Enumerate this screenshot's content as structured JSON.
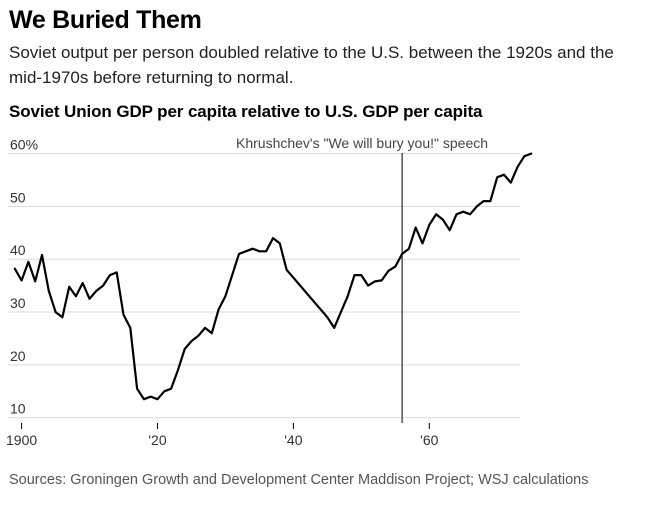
{
  "headline": "We Buried Them",
  "dek": "Soviet output per person doubled relative to the U.S. between the 1920s and the mid-1970s before returning to normal.",
  "source": "Sources: Groningen Growth and Development Center Maddison Project; WSJ calculations",
  "colors": {
    "line": "#000000",
    "grid": "#d9d9d9",
    "annotation": "#000000",
    "tick_text": "#333333"
  },
  "chart_data": {
    "type": "line",
    "title": "Soviet Union GDP per capita relative to U.S. GDP per capita",
    "xlabel": "",
    "ylabel": "",
    "xlim": [
      1898,
      1976
    ],
    "ylim": [
      9,
      62
    ],
    "grid": true,
    "y_ticks": [
      {
        "value": 10,
        "label": "10"
      },
      {
        "value": 20,
        "label": "20"
      },
      {
        "value": 30,
        "label": "30"
      },
      {
        "value": 40,
        "label": "40"
      },
      {
        "value": 50,
        "label": "50"
      },
      {
        "value": 60,
        "label": "60%"
      }
    ],
    "x_ticks": [
      {
        "value": 1900,
        "label": "1900"
      },
      {
        "value": 1920,
        "label": "'20"
      },
      {
        "value": 1940,
        "label": "'40"
      },
      {
        "value": 1960,
        "label": "'60"
      }
    ],
    "annotation": {
      "x": 1956,
      "text": "Khrushchev's \"We will bury you!\" speech"
    },
    "x": [
      1899,
      1900,
      1901,
      1902,
      1903,
      1904,
      1905,
      1906,
      1907,
      1908,
      1909,
      1910,
      1911,
      1912,
      1913,
      1914,
      1915,
      1916,
      1917,
      1918,
      1919,
      1920,
      1921,
      1922,
      1923,
      1924,
      1925,
      1926,
      1927,
      1928,
      1929,
      1930,
      1931,
      1932,
      1933,
      1934,
      1935,
      1936,
      1937,
      1938,
      1939,
      1940,
      1941,
      1942,
      1943,
      1944,
      1945,
      1946,
      1947,
      1948,
      1949,
      1950,
      1951,
      1952,
      1953,
      1954,
      1955,
      1956,
      1957,
      1958,
      1959,
      1960,
      1961,
      1962,
      1963,
      1964,
      1965,
      1966,
      1967,
      1968,
      1969,
      1970,
      1971,
      1972,
      1973,
      1974,
      1975
    ],
    "series": [
      {
        "values": [
          38.2,
          36.0,
          39.5,
          35.8,
          40.8,
          34.0,
          30.0,
          29.0,
          34.8,
          33.0,
          35.5,
          32.5,
          34.0,
          35.0,
          37.0,
          37.5,
          29.5,
          27.0,
          15.5,
          13.5,
          14.0,
          13.5,
          15.0,
          15.5,
          19.0,
          23.0,
          24.5,
          25.5,
          27.0,
          26.0,
          30.5,
          33.0,
          37.0,
          41.0,
          41.5,
          42.0,
          41.5,
          41.5,
          44.0,
          43.0,
          38.0,
          36.5,
          35.0,
          33.5,
          32.0,
          30.5,
          29.0,
          27.0,
          30.0,
          33.0,
          37.0,
          37.0,
          35.0,
          35.8,
          36.0,
          37.8,
          38.6,
          41.0,
          42.0,
          46.0,
          43.0,
          46.5,
          48.5,
          47.5,
          45.5,
          48.5,
          49.0,
          48.5,
          50.0,
          51.0,
          51.0,
          55.5,
          56.0,
          54.5,
          57.5,
          59.5,
          60.0
        ]
      }
    ]
  }
}
